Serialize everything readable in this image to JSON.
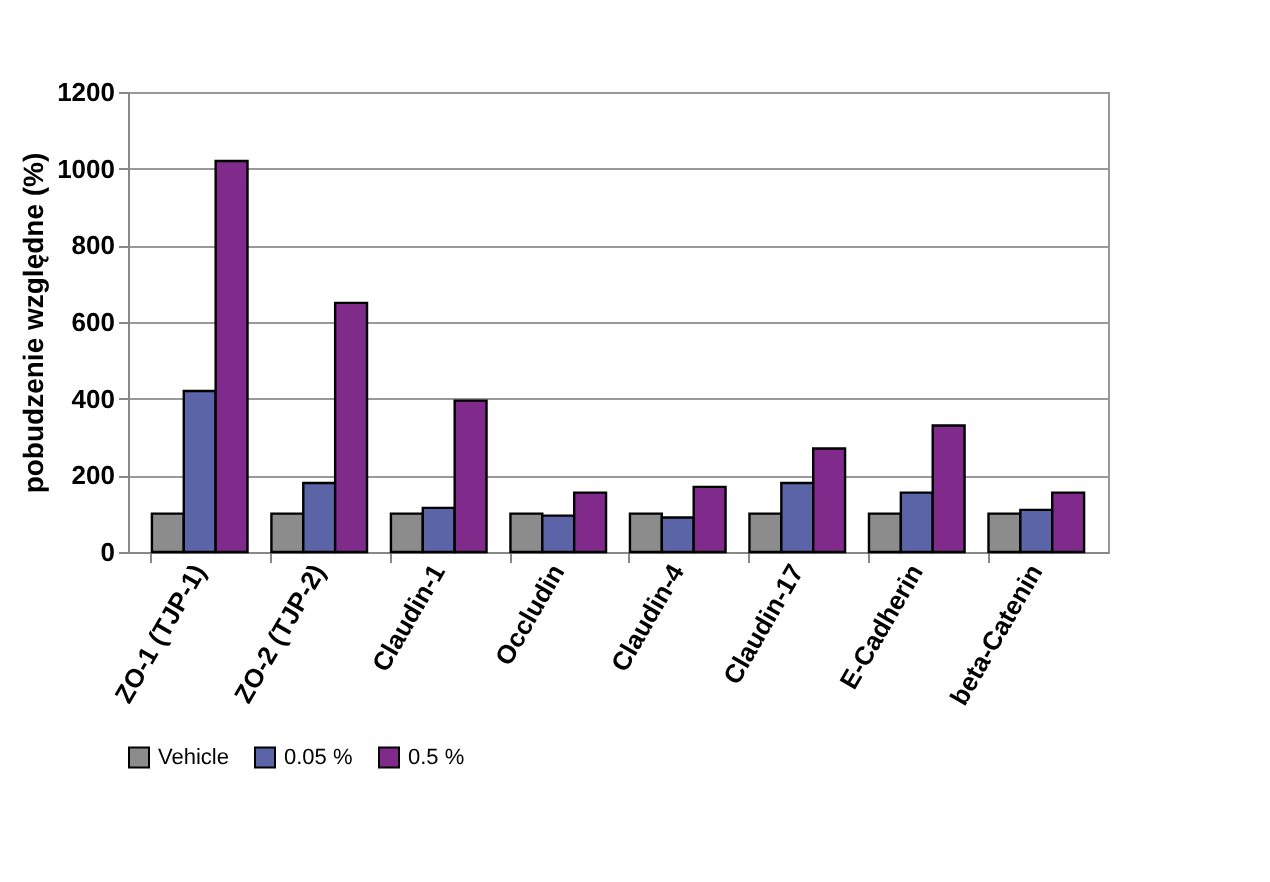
{
  "chart_data": {
    "type": "bar",
    "ylabel": "pobudzenie względne (%)",
    "categories": [
      "ZO-1 (TJP-1)",
      "ZO-2 (TJP-2)",
      "Claudin-1",
      "Occludin",
      "Claudin-4",
      "Claudin-17",
      "E-Cadherin",
      "beta-Catenin"
    ],
    "series": [
      {
        "name": "Vehicle",
        "color": "#8c8c8c",
        "values": [
          100,
          100,
          100,
          100,
          100,
          100,
          100,
          100
        ]
      },
      {
        "name": "0.05 %",
        "color": "#5b64a6",
        "values": [
          420,
          180,
          115,
          95,
          90,
          180,
          155,
          110
        ]
      },
      {
        "name": "0.5 %",
        "color": "#802a8c",
        "values": [
          1020,
          650,
          395,
          155,
          170,
          270,
          330,
          155
        ]
      }
    ],
    "ylim": [
      0,
      1200
    ],
    "yticks": [
      0,
      200,
      400,
      600,
      800,
      1000,
      1200
    ],
    "grid": "y",
    "legend": "bottom"
  }
}
